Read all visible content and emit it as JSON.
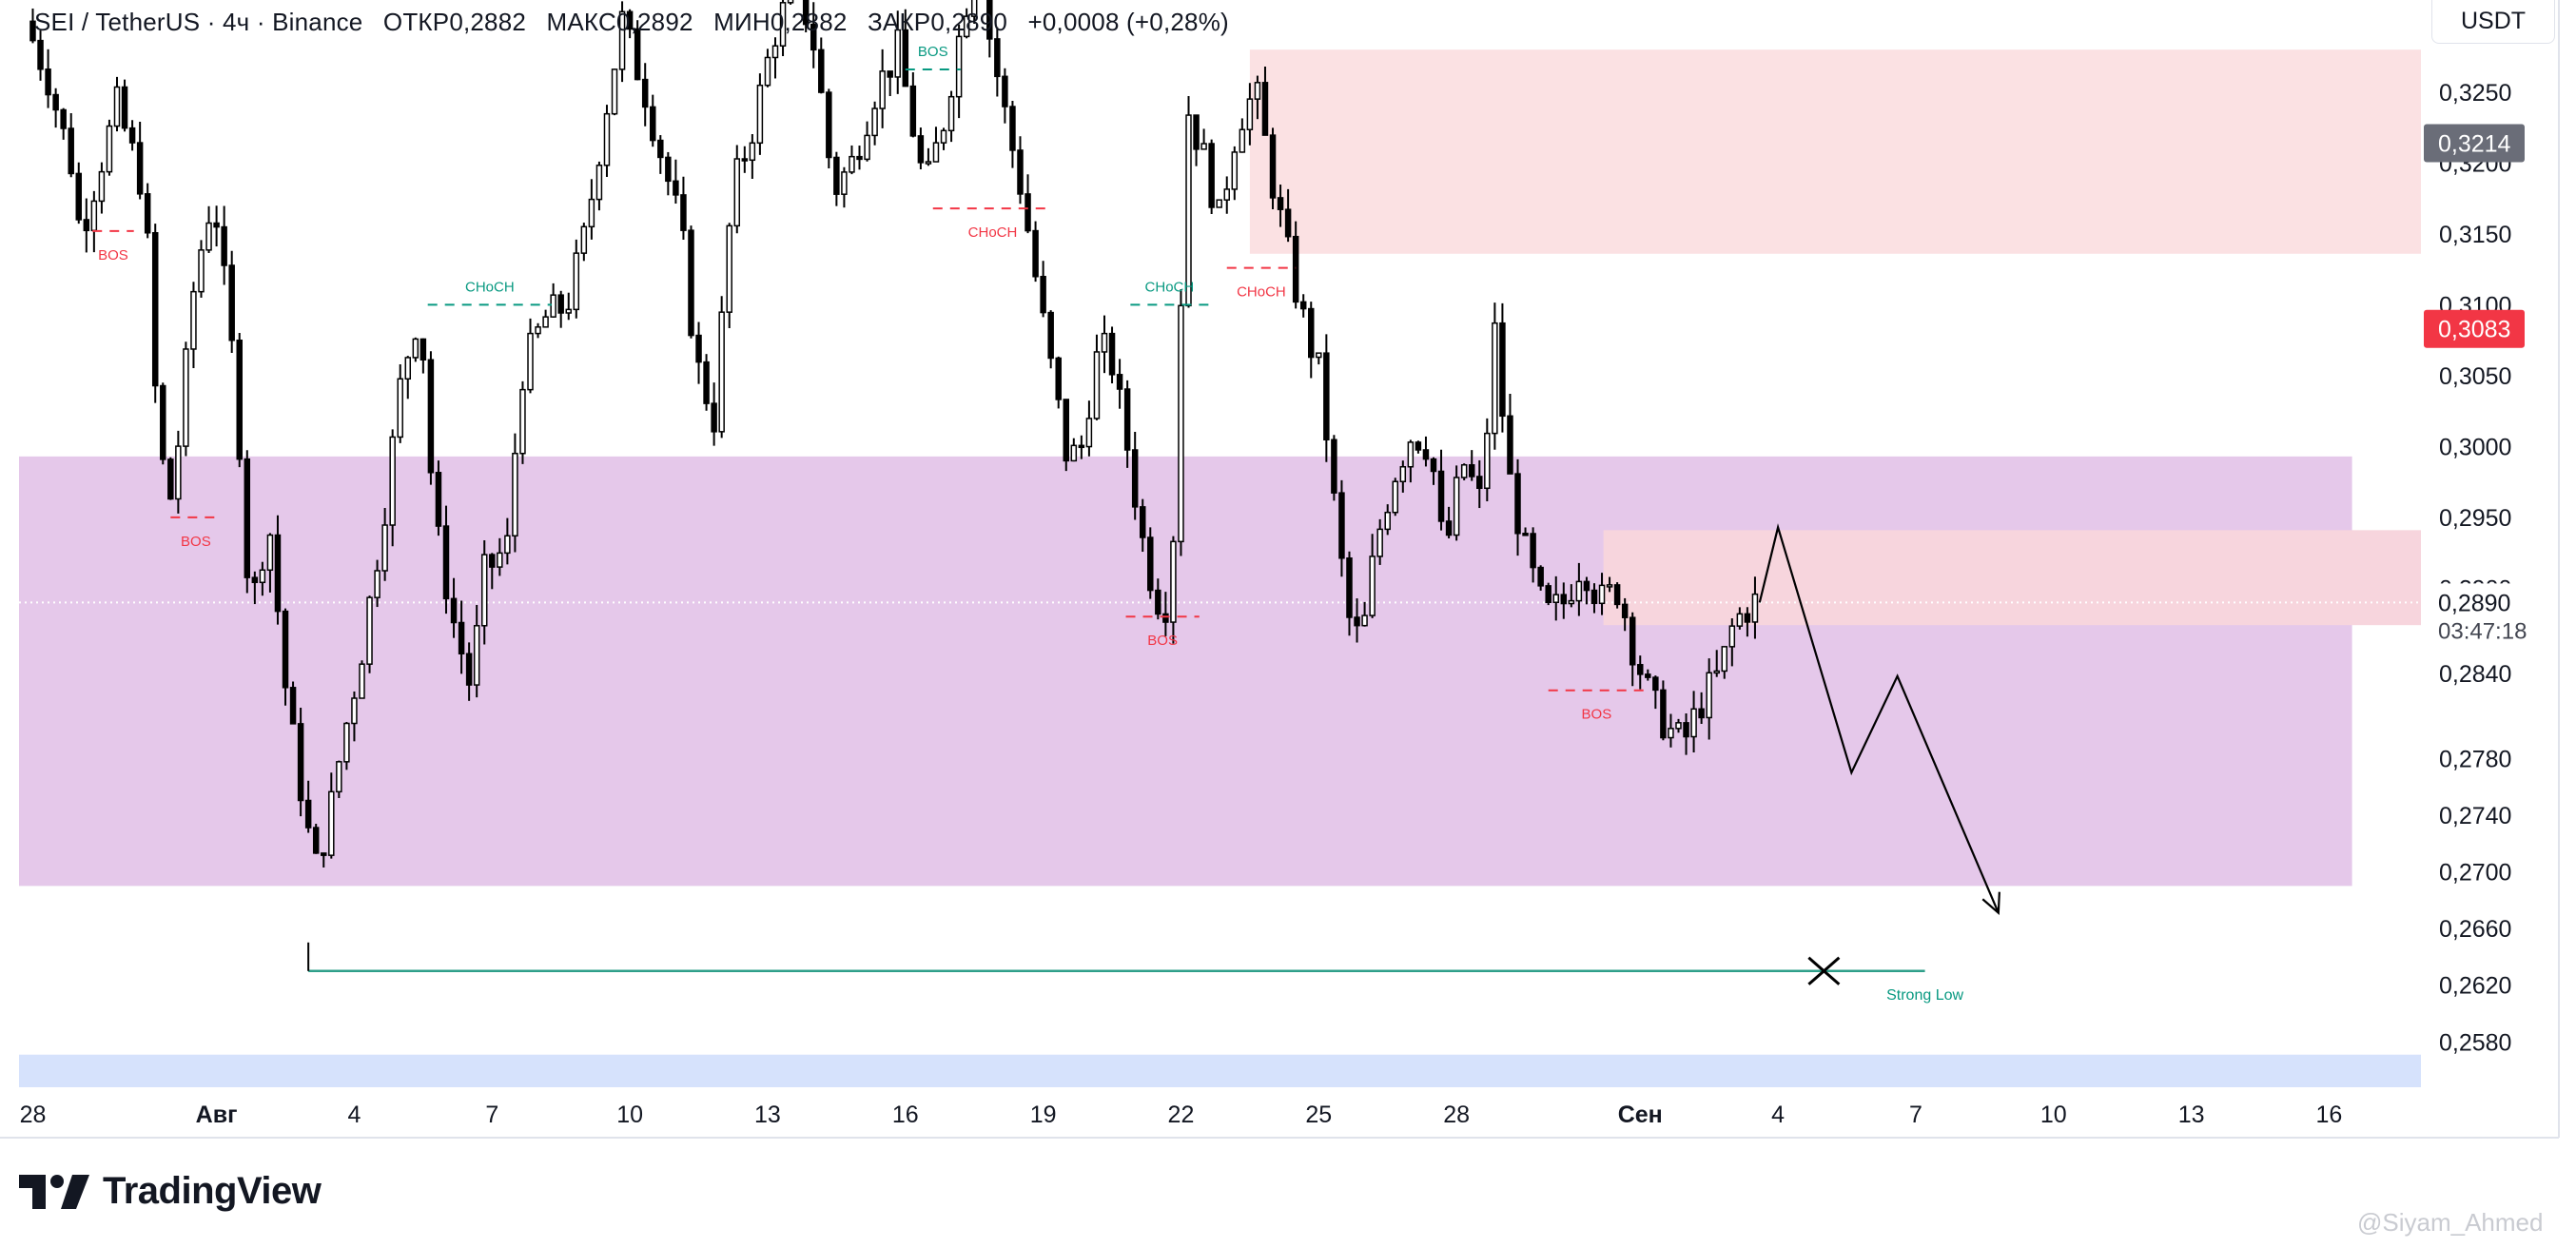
{
  "header": {
    "symbol": "SEI / TetherUS · 4ч · Binance",
    "open_label": "ОТКР",
    "open": "0,2882",
    "high_label": "МАКС",
    "high": "0,2892",
    "low_label": "МИН",
    "low": "0,2882",
    "close_label": "ЗАКР",
    "close": "0,2890",
    "change": "+0,0008 (+0,28%)"
  },
  "currency_button": "USDT",
  "brand": {
    "name": "TradingView",
    "logo_icon": "tradingview-logo-icon"
  },
  "watermark": "@Siyam_Ahmed",
  "colors": {
    "bull": "#ffffff",
    "bear": "#000000",
    "wick": "#000000",
    "supply_zone": "#fbe1e3",
    "demand_zone": "#e5c8ea",
    "inner_zone": "#f7d5dd",
    "bottom_band": "#d6e2fc",
    "bos_red": "#f23645",
    "choch_green": "#089981",
    "last_price": "#f23645",
    "marker_gray": "#6a6d78"
  },
  "chart_data": {
    "type": "candlestick",
    "symbol": "SEI / TetherUS",
    "timeframe": "4ч",
    "exchange": "Binance",
    "x_axis": {
      "ticks": [
        {
          "day": 0,
          "label": "28"
        },
        {
          "day": 4,
          "label": "Авг"
        },
        {
          "day": 7,
          "label": "4"
        },
        {
          "day": 10,
          "label": "7"
        },
        {
          "day": 13,
          "label": "10"
        },
        {
          "day": 16,
          "label": "13"
        },
        {
          "day": 19,
          "label": "16"
        },
        {
          "day": 22,
          "label": "19"
        },
        {
          "day": 25,
          "label": "22"
        },
        {
          "day": 28,
          "label": "25"
        },
        {
          "day": 31,
          "label": "28"
        },
        {
          "day": 35,
          "label": "Сен"
        },
        {
          "day": 38,
          "label": "4"
        },
        {
          "day": 41,
          "label": "7"
        },
        {
          "day": 44,
          "label": "10"
        },
        {
          "day": 47,
          "label": "13"
        },
        {
          "day": 50,
          "label": "16"
        }
      ],
      "range_days": [
        -0.3,
        52.0
      ]
    },
    "y_axis": {
      "currency": "USDT",
      "tick_labels": [
        "0,3250",
        "0,3200",
        "0,3150",
        "0,3100",
        "0,3050",
        "0,3000",
        "0,2950",
        "0,2900",
        "0,2840",
        "0,2780",
        "0,2740",
        "0,2700",
        "0,2660",
        "0,2620",
        "0,2580"
      ],
      "tick_values": [
        0.325,
        0.32,
        0.315,
        0.31,
        0.305,
        0.3,
        0.295,
        0.29,
        0.284,
        0.278,
        0.274,
        0.27,
        0.266,
        0.262,
        0.258
      ],
      "range": [
        0.2548,
        0.3315
      ]
    },
    "price_badges": [
      {
        "label": "0,3214",
        "value": 0.3214,
        "color": "#6a6d78"
      },
      {
        "label": "0,3083",
        "value": 0.3083,
        "color": "#f23645"
      },
      {
        "label": "0,2890",
        "value": 0.289,
        "color": "#ffffff",
        "countdown": "03:47:18"
      }
    ],
    "current_price": 0.289,
    "candles_anchor_points": [
      [
        0.0,
        0.33
      ],
      [
        0.5,
        0.326
      ],
      [
        1.0,
        0.32
      ],
      [
        1.2,
        0.315
      ],
      [
        2.0,
        0.324
      ],
      [
        2.6,
        0.318
      ],
      [
        2.9,
        0.3
      ],
      [
        3.2,
        0.296
      ],
      [
        3.7,
        0.312
      ],
      [
        4.1,
        0.318
      ],
      [
        4.6,
        0.304
      ],
      [
        4.9,
        0.288
      ],
      [
        5.3,
        0.295
      ],
      [
        5.7,
        0.282
      ],
      [
        6.0,
        0.276
      ],
      [
        6.3,
        0.27
      ],
      [
        6.6,
        0.2735
      ],
      [
        6.9,
        0.279
      ],
      [
        7.3,
        0.285
      ],
      [
        7.8,
        0.295
      ],
      [
        8.2,
        0.305
      ],
      [
        8.6,
        0.31
      ],
      [
        8.9,
        0.295
      ],
      [
        9.3,
        0.288
      ],
      [
        9.7,
        0.283
      ],
      [
        10.0,
        0.291
      ],
      [
        10.5,
        0.293
      ],
      [
        10.8,
        0.305
      ],
      [
        11.3,
        0.309
      ],
      [
        11.8,
        0.31
      ],
      [
        12.2,
        0.315
      ],
      [
        12.6,
        0.323
      ],
      [
        13.0,
        0.33
      ],
      [
        13.5,
        0.325
      ],
      [
        13.9,
        0.32
      ],
      [
        14.3,
        0.315
      ],
      [
        14.6,
        0.306
      ],
      [
        15.0,
        0.302
      ],
      [
        15.4,
        0.318
      ],
      [
        15.8,
        0.322
      ],
      [
        16.3,
        0.329
      ],
      [
        16.8,
        0.333
      ],
      [
        17.2,
        0.328
      ],
      [
        17.6,
        0.318
      ],
      [
        18.0,
        0.32
      ],
      [
        18.5,
        0.325
      ],
      [
        19.0,
        0.328
      ],
      [
        19.3,
        0.323
      ],
      [
        19.6,
        0.318
      ],
      [
        20.0,
        0.323
      ],
      [
        20.4,
        0.33
      ],
      [
        20.8,
        0.336
      ],
      [
        21.0,
        0.329
      ],
      [
        21.3,
        0.324
      ],
      [
        21.7,
        0.318
      ],
      [
        22.2,
        0.308
      ],
      [
        22.7,
        0.299
      ],
      [
        23.0,
        0.3
      ],
      [
        23.3,
        0.306
      ],
      [
        23.6,
        0.307
      ],
      [
        24.0,
        0.3
      ],
      [
        24.4,
        0.292
      ],
      [
        24.8,
        0.288
      ],
      [
        25.0,
        0.294
      ],
      [
        25.3,
        0.324
      ],
      [
        25.7,
        0.32
      ],
      [
        26.0,
        0.316
      ],
      [
        26.4,
        0.323
      ],
      [
        26.8,
        0.325
      ],
      [
        27.2,
        0.318
      ],
      [
        27.6,
        0.312
      ],
      [
        27.9,
        0.308
      ],
      [
        28.2,
        0.305
      ],
      [
        28.5,
        0.296
      ],
      [
        28.8,
        0.288
      ],
      [
        29.1,
        0.286
      ],
      [
        29.4,
        0.293
      ],
      [
        29.8,
        0.298
      ],
      [
        30.2,
        0.301
      ],
      [
        30.6,
        0.3
      ],
      [
        30.9,
        0.292
      ],
      [
        31.3,
        0.299
      ],
      [
        31.7,
        0.296
      ],
      [
        32.0,
        0.308
      ],
      [
        32.3,
        0.298
      ],
      [
        32.7,
        0.292
      ],
      [
        33.1,
        0.288
      ],
      [
        33.5,
        0.289
      ],
      [
        33.9,
        0.292
      ],
      [
        34.3,
        0.289
      ],
      [
        34.7,
        0.29
      ],
      [
        35.0,
        0.286
      ],
      [
        35.4,
        0.282
      ],
      [
        35.8,
        0.28
      ],
      [
        36.1,
        0.279
      ],
      [
        36.5,
        0.282
      ],
      [
        36.9,
        0.284
      ],
      [
        37.2,
        0.2875
      ],
      [
        37.6,
        0.289
      ]
    ],
    "zones": [
      {
        "name": "supply-zone",
        "x0": 26.5,
        "x1": 52.0,
        "y0": 0.3136,
        "y1": 0.328,
        "color": "#fbe1e3"
      },
      {
        "name": "demand-zone",
        "x0": -0.3,
        "x1": 50.5,
        "y0": 0.269,
        "y1": 0.2993,
        "color": "#e5c8ea"
      },
      {
        "name": "inner-supply-zone",
        "x0": 34.2,
        "x1": 52.0,
        "y0": 0.2874,
        "y1": 0.2941,
        "color": "#f7d5dd"
      },
      {
        "name": "bottom-band",
        "x0": -0.3,
        "x1": 52.0,
        "y0": 0.2548,
        "y1": 0.2571,
        "color": "#d6e2fc"
      }
    ],
    "structure_labels": [
      {
        "text": "BOS",
        "color": "red",
        "x0": 1.3,
        "x1": 2.2,
        "y": 0.3152
      },
      {
        "text": "BOS",
        "color": "red",
        "x0": 3.0,
        "x1": 4.1,
        "y": 0.295
      },
      {
        "text": "CHoCH",
        "color": "green",
        "x0": 8.6,
        "x1": 11.3,
        "y": 0.31
      },
      {
        "text": "BOS",
        "color": "green",
        "x0": 19.0,
        "x1": 20.2,
        "y": 0.3266
      },
      {
        "text": "CHoCH",
        "color": "red",
        "x0": 19.6,
        "x1": 22.2,
        "y": 0.3168
      },
      {
        "text": "CHoCH",
        "color": "green",
        "x0": 23.9,
        "x1": 25.6,
        "y": 0.31
      },
      {
        "text": "BOS",
        "color": "red",
        "x0": 23.8,
        "x1": 25.4,
        "y": 0.288
      },
      {
        "text": "CHoCH",
        "color": "red",
        "x0": 26.0,
        "x1": 27.5,
        "y": 0.3126
      },
      {
        "text": "BOS",
        "color": "red",
        "x0": 33.0,
        "x1": 35.1,
        "y": 0.2828
      }
    ],
    "strong_low": {
      "label": "Strong Low",
      "x0": 6.0,
      "x1": 41.2,
      "y": 0.263
    },
    "projection_path": [
      [
        37.6,
        0.289
      ],
      [
        38.0,
        0.2943
      ],
      [
        39.6,
        0.277
      ],
      [
        40.6,
        0.2838
      ],
      [
        42.8,
        0.2671
      ]
    ],
    "target_marker": {
      "x": 39.0,
      "y": 0.263
    }
  }
}
